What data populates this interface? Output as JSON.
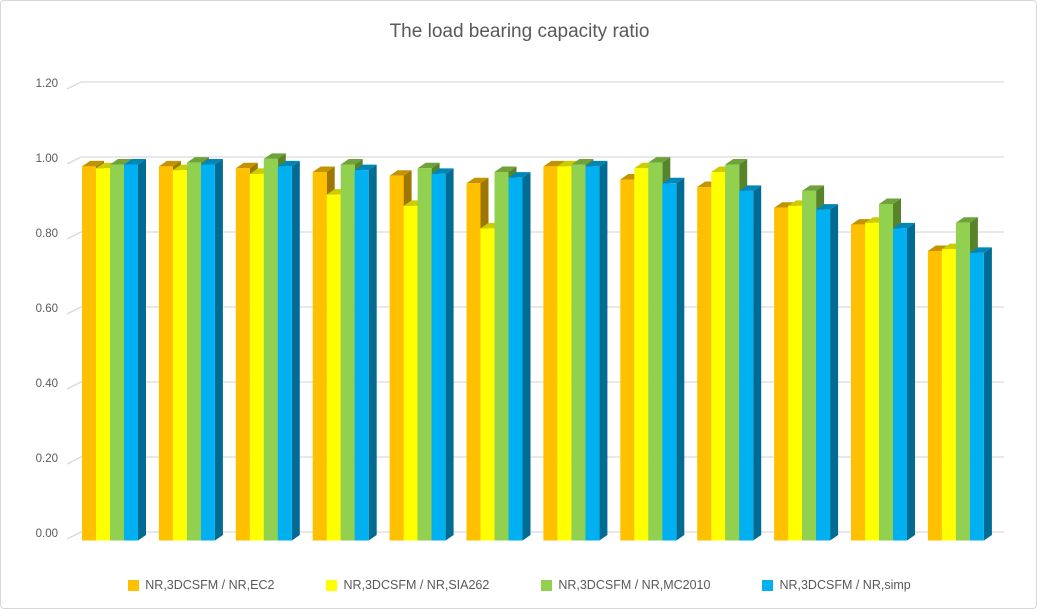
{
  "window": {
    "background": "#FFFFFF",
    "border_color": "#D8D8D8"
  },
  "chart_data": {
    "type": "bar",
    "style": "3d-clustered-column",
    "title": "The load bearing capacity ratio",
    "title_color": "#595959",
    "x_axis": {
      "labels_visible": false,
      "n_categories": 12
    },
    "y_axis": {
      "min": 0.0,
      "max": 1.2,
      "tick_step": 0.2,
      "tick_labels": [
        "1.20",
        "1.00",
        "0.80",
        "0.60",
        "0.40",
        "0.20",
        "0.00"
      ],
      "gridlines": true,
      "gridline_color": "#D9D9D9",
      "label_color": "#595959"
    },
    "legend_position": "bottom",
    "series": [
      {
        "name": "NR,3DCSFM / NR,EC2",
        "color": "#FFC000",
        "top_color": "#C49300",
        "side_color": "#9E7600",
        "values": [
          0.995,
          0.995,
          0.99,
          0.98,
          0.97,
          0.95,
          0.995,
          0.96,
          0.94,
          0.885,
          0.84,
          0.77
        ]
      },
      {
        "name": "NR,3DCSFM / NR,SIA262",
        "color": "#FFFF00",
        "top_color": "#CCCC00",
        "side_color": "#A3A300",
        "values": [
          0.99,
          0.985,
          0.975,
          0.92,
          0.89,
          0.83,
          0.995,
          0.99,
          0.98,
          0.89,
          0.845,
          0.775
        ]
      },
      {
        "name": "NR,3DCSFM / NR,MC2010",
        "color": "#92D050",
        "top_color": "#6FA33A",
        "side_color": "#57832B",
        "values": [
          1.0,
          1.005,
          1.015,
          1.0,
          0.99,
          0.98,
          1.0,
          1.005,
          1.0,
          0.93,
          0.895,
          0.845
        ]
      },
      {
        "name": "NR,3DCSFM / NR,simp",
        "color": "#00B0F0",
        "top_color": "#0087B8",
        "side_color": "#006C93",
        "values": [
          1.0,
          1.0,
          0.995,
          0.985,
          0.975,
          0.965,
          0.995,
          0.95,
          0.93,
          0.88,
          0.83,
          0.765
        ]
      }
    ]
  }
}
